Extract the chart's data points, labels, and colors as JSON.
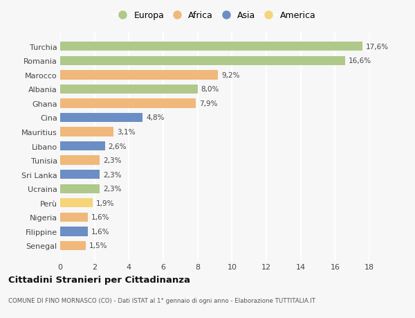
{
  "categories": [
    "Turchia",
    "Romania",
    "Marocco",
    "Albania",
    "Ghana",
    "Cina",
    "Mauritius",
    "Libano",
    "Tunisia",
    "Sri Lanka",
    "Ucraina",
    "Perù",
    "Nigeria",
    "Filippine",
    "Senegal"
  ],
  "values": [
    17.6,
    16.6,
    9.2,
    8.0,
    7.9,
    4.8,
    3.1,
    2.6,
    2.3,
    2.3,
    2.3,
    1.9,
    1.6,
    1.6,
    1.5
  ],
  "labels": [
    "17,6%",
    "16,6%",
    "9,2%",
    "8,0%",
    "7,9%",
    "4,8%",
    "3,1%",
    "2,6%",
    "2,3%",
    "2,3%",
    "2,3%",
    "1,9%",
    "1,6%",
    "1,6%",
    "1,5%"
  ],
  "continents": [
    "Europa",
    "Europa",
    "Africa",
    "Europa",
    "Africa",
    "Asia",
    "Africa",
    "Asia",
    "Africa",
    "Asia",
    "Europa",
    "America",
    "Africa",
    "Asia",
    "Africa"
  ],
  "colors": {
    "Europa": "#aec98a",
    "Africa": "#f0b87a",
    "Asia": "#6b8ec4",
    "America": "#f5d47a"
  },
  "legend_order": [
    "Europa",
    "Africa",
    "Asia",
    "America"
  ],
  "title": "Cittadini Stranieri per Cittadinanza",
  "subtitle": "COMUNE DI FINO MORNASCO (CO) - Dati ISTAT al 1° gennaio di ogni anno - Elaborazione TUTTITALIA.IT",
  "xlim": [
    0,
    18
  ],
  "xticks": [
    0,
    2,
    4,
    6,
    8,
    10,
    12,
    14,
    16,
    18
  ],
  "background_color": "#f7f7f7",
  "plot_bg_color": "#f7f7f7",
  "grid_color": "#ffffff",
  "bar_height": 0.65
}
